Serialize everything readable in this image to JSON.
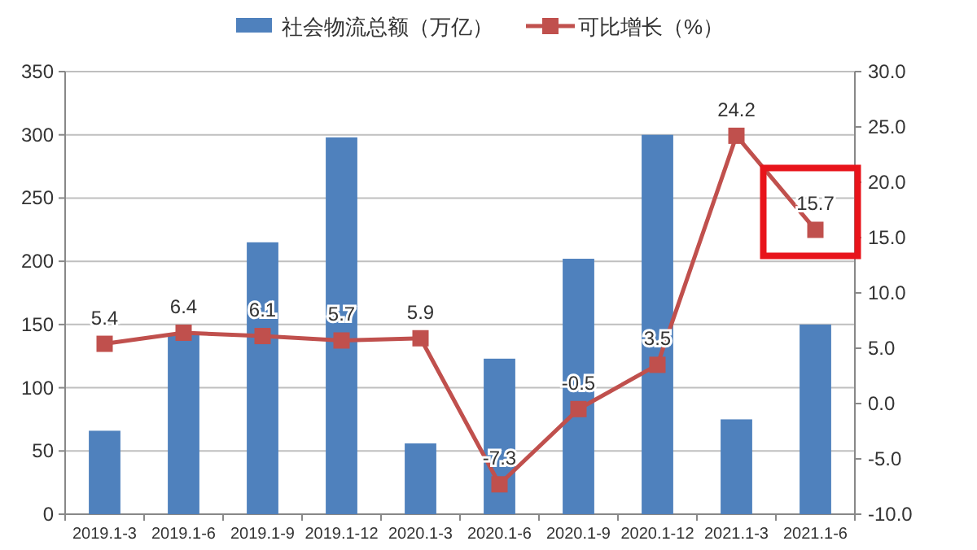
{
  "chart_data": {
    "type": "bar",
    "categories": [
      "2019.1-3",
      "2019.1-6",
      "2019.1-9",
      "2019.1-12",
      "2020.1-3",
      "2020.1-6",
      "2020.1-9",
      "2020.1-12",
      "2021.1-3",
      "2021.1-6"
    ],
    "series": [
      {
        "name": "社会物流总额（万亿）",
        "color": "#4f81bd",
        "values": [
          66,
          142,
          215,
          298,
          56,
          123,
          202,
          300,
          75,
          150
        ]
      },
      {
        "name": "可比增长（%）",
        "type": "line",
        "axis": "y2",
        "color": "#c0504d",
        "marker": "square",
        "values": [
          5.4,
          6.4,
          6.1,
          5.7,
          5.9,
          -7.3,
          -0.5,
          3.5,
          24.2,
          15.7
        ],
        "value_labels": [
          "5.4",
          "6.4",
          "6.1",
          "5.7",
          "5.9",
          "-7.3",
          "-0.5",
          "3.5",
          "24.2",
          "15.7"
        ]
      }
    ],
    "ylim": [
      0,
      350
    ],
    "yticks": [
      0,
      50,
      100,
      150,
      200,
      250,
      300,
      350
    ],
    "y2lim": [
      -10,
      30
    ],
    "y2ticks": [
      {
        "value": -10,
        "label": "-10.0"
      },
      {
        "value": -5,
        "label": "-5.0"
      },
      {
        "value": 0,
        "label": "0.0"
      },
      {
        "value": 5,
        "label": "5.0"
      },
      {
        "value": 10,
        "label": "10.0"
      },
      {
        "value": 15,
        "label": "15.0"
      },
      {
        "value": 20,
        "label": "20.0"
      },
      {
        "value": 25,
        "label": "25.0"
      },
      {
        "value": 30,
        "label": "30.0"
      }
    ],
    "grid": "y",
    "legend": "top"
  }
}
